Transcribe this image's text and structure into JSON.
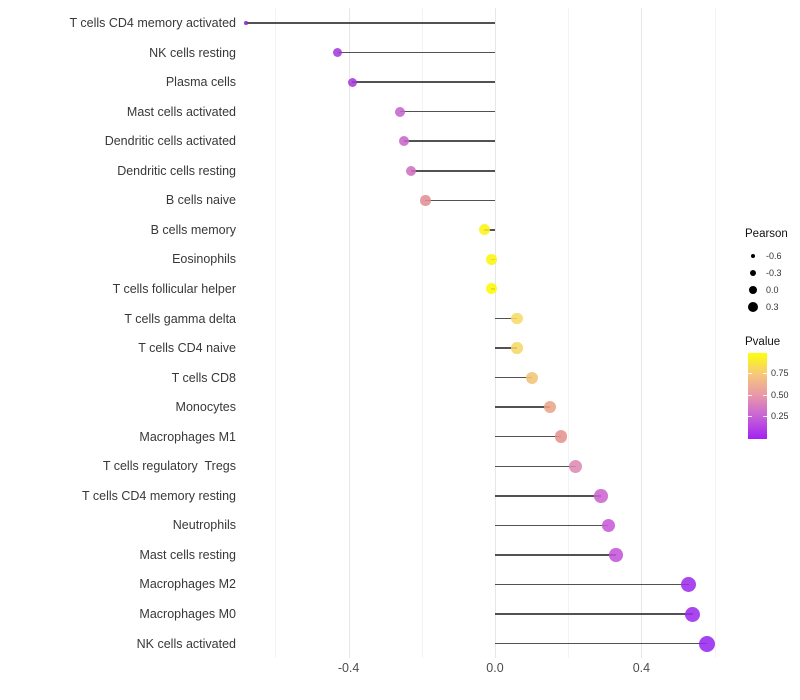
{
  "chart_data": {
    "type": "lollipop",
    "title": "",
    "xlabel": "",
    "ylabel": "",
    "xlim": [
      -0.745,
      0.65
    ],
    "grid": "vertical-only",
    "x_tick_labels": [
      "-0.4",
      "0.0",
      "0.4"
    ],
    "x_major_ticks": [
      -0.4,
      0.0,
      0.4
    ],
    "x_minor_ticks": [
      -0.6,
      -0.2,
      0.2,
      0.6
    ],
    "categories": [
      "T cells CD4 memory activated",
      "NK cells resting",
      "Plasma cells",
      "Mast cells activated",
      "Dendritic cells activated",
      "Dendritic cells resting",
      "B cells naive",
      "B cells memory",
      "Eosinophils",
      "T cells follicular helper",
      "T cells gamma delta",
      "T cells CD4 naive",
      "T cells CD8",
      "Monocytes",
      "Macrophages M1",
      "T cells regulatory  Tregs",
      "T cells CD4 memory resting",
      "Neutrophils",
      "Mast cells resting",
      "Macrophages M2",
      "Macrophages M0",
      "NK cells activated"
    ],
    "values": [
      -0.68,
      -0.43,
      -0.39,
      -0.26,
      -0.25,
      -0.23,
      -0.19,
      -0.03,
      -0.01,
      -0.01,
      0.06,
      0.06,
      0.1,
      0.15,
      0.18,
      0.22,
      0.29,
      0.31,
      0.33,
      0.53,
      0.54,
      0.58
    ],
    "point_colors": [
      "#8a27d8",
      "#a13cd9",
      "#a83ad7",
      "#c763c9",
      "#c766ca",
      "#ce6fbc",
      "#e18d95",
      "#fcf318",
      "#fdf50d",
      "#fef803",
      "#f6da65",
      "#f5d767",
      "#f0c475",
      "#e8a487",
      "#e4928d",
      "#de89b2",
      "#cb63ce",
      "#c558d7",
      "#c353d9",
      "#9c2cec",
      "#9c2cec",
      "#9727f0"
    ],
    "point_sizes": [
      3.5,
      9,
      9,
      10,
      10,
      10,
      10.5,
      11,
      11,
      11,
      11.5,
      11.5,
      12,
      12.5,
      12.5,
      13,
      13.5,
      13.5,
      13.5,
      15,
      15,
      16
    ],
    "stem_color": "#3a3a3a",
    "grid_major_color": "#e7e7e7",
    "grid_minor_color": "#f3f3f3"
  },
  "legend": {
    "size": {
      "title": "Pearson",
      "entries": [
        {
          "label": "-0.6",
          "d": 4.5
        },
        {
          "label": "-0.3",
          "d": 6.5
        },
        {
          "label": "0.0",
          "d": 8.5
        },
        {
          "label": "0.3",
          "d": 10
        }
      ]
    },
    "color": {
      "title": "Pvalue",
      "gradient_top_to_bottom": [
        "#fdff0a",
        "#f6c77c",
        "#e896ab",
        "#c55fd8",
        "#a321f2"
      ],
      "tick_labels": [
        "0.75",
        "0.50",
        "0.25"
      ]
    }
  }
}
